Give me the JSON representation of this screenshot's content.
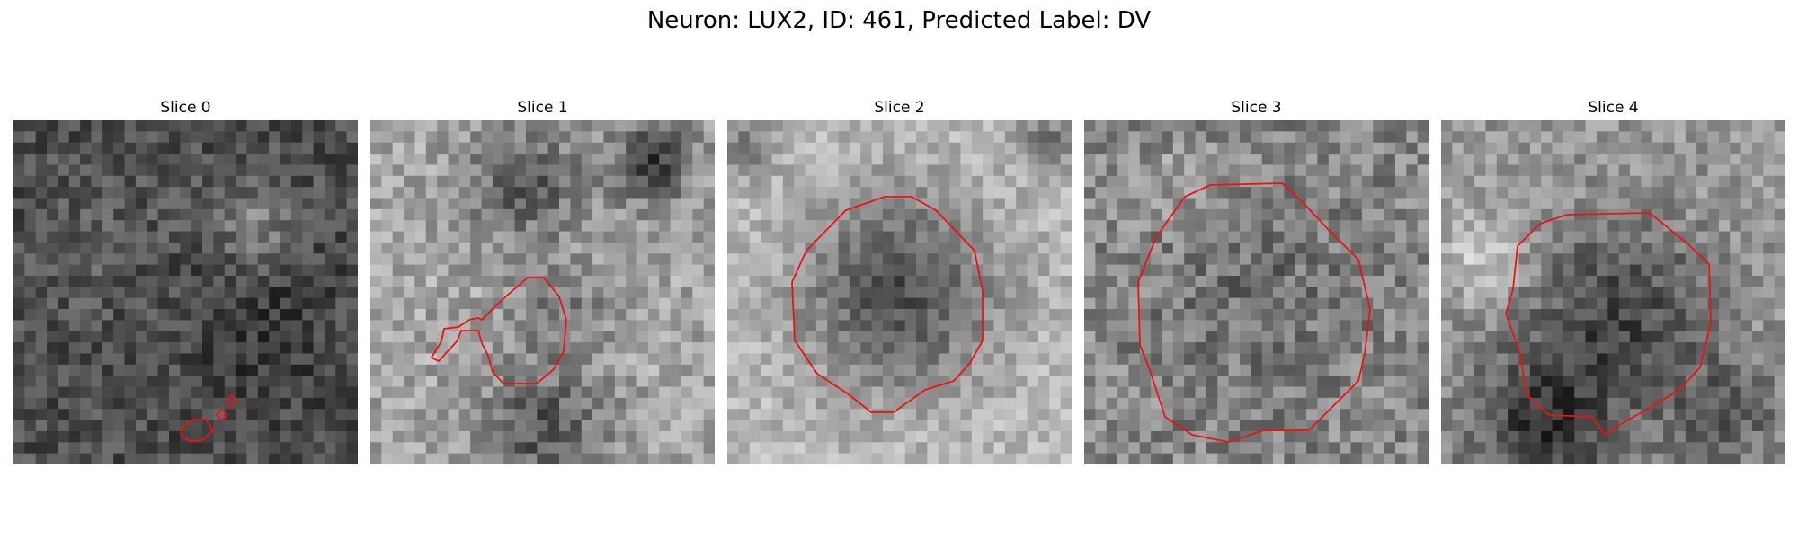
{
  "figure": {
    "title": "Neuron: LUX2, ID: 461, Predicted Label: DV"
  },
  "image": {
    "grid": 31,
    "colormap": "gray",
    "contour_color": "#ee1111"
  },
  "slices": [
    {
      "title": "Slice 0"
    },
    {
      "title": "Slice 1"
    },
    {
      "title": "Slice 2"
    },
    {
      "title": "Slice 3"
    },
    {
      "title": "Slice 4"
    }
  ]
}
